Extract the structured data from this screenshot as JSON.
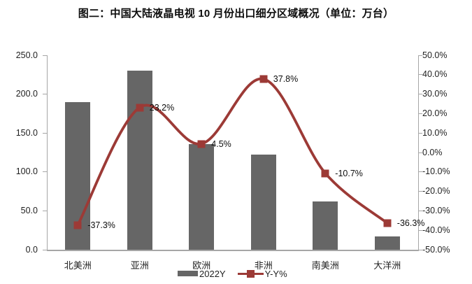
{
  "title": "图二：中国大陆液晶电视 10 月份出口细分区域概况（单位：万台）",
  "chart_data": {
    "type": "bar+line combo",
    "title": "图二：中国大陆液晶电视 10 月份出口细分区域概况（单位：万台）",
    "categories": [
      "北美洲",
      "亚洲",
      "欧洲",
      "非洲",
      "南美洲",
      "大洋洲"
    ],
    "series": [
      {
        "name": "2022Y",
        "type": "bar",
        "axis": "left",
        "values": [
          190,
          230,
          136,
          122,
          62,
          17
        ],
        "color": "#666666"
      },
      {
        "name": "Y-Y%",
        "type": "line",
        "axis": "right",
        "values": [
          -37.3,
          23.2,
          4.5,
          37.8,
          -10.7,
          -36.3
        ],
        "point_labels": [
          "-37.3%",
          "23.2%",
          "4.5%",
          "37.8%",
          "-10.7%",
          "-36.3%"
        ],
        "color": "#9c3a36",
        "marker": "square",
        "smooth": true
      }
    ],
    "left_axis": {
      "min": 0,
      "max": 250,
      "step": 50,
      "tick_labels": [
        "250.0",
        "200.0",
        "150.0",
        "100.0",
        "50.0",
        "0.0"
      ]
    },
    "right_axis": {
      "min": -50,
      "max": 50,
      "step": 10,
      "tick_labels": [
        "50.0%",
        "40.0%",
        "30.0%",
        "20.0%",
        "10.0%",
        "0.0%",
        "-10.0%",
        "-20.0%",
        "-30.0%",
        "-40.0%",
        "-50.0%"
      ]
    },
    "grid": false,
    "legend_position": "bottom-center",
    "axis_color": "#a6a6a6",
    "background": "#ffffff"
  }
}
